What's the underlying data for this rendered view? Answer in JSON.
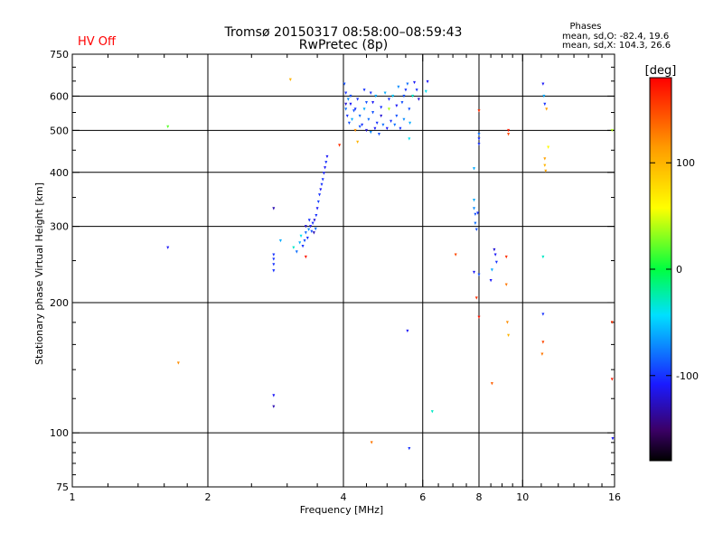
{
  "title_line1": "Tromsø 20150317 08:58:00–08:59:43",
  "title_line2": "RwPretec (8p)",
  "status": "HV Off",
  "status_color": "#ff0000",
  "phases": {
    "heading": "Phases",
    "line_o": "mean, sd,O: -82.4, 19.6",
    "line_x": "mean, sd,X: 104.3, 26.6"
  },
  "colorbar": {
    "label": "[deg]",
    "ticks": [
      "100",
      "0",
      "-100"
    ],
    "tick_values": [
      100,
      0,
      -100
    ],
    "range": [
      -180,
      180
    ]
  },
  "chart_data": {
    "type": "scatter",
    "xlabel": "Frequency [MHz]",
    "ylabel": "Stationary phase Virtual Height [km]",
    "x_scale": "log",
    "y_scale": "log",
    "xlim": [
      1,
      16
    ],
    "ylim": [
      75,
      750
    ],
    "xticks": [
      1,
      2,
      4,
      6,
      8,
      10,
      16
    ],
    "xtick_labels": [
      "1",
      "2",
      "4",
      "6",
      "8",
      "10",
      "16"
    ],
    "yticks": [
      75,
      100,
      200,
      300,
      400,
      500,
      600,
      750
    ],
    "ytick_labels": [
      "75",
      "100",
      "200",
      "300",
      "400",
      "500",
      "600",
      "750"
    ],
    "grid_x": [
      2,
      4,
      6,
      8,
      10
    ],
    "grid_y": [
      100,
      200,
      300,
      400,
      500,
      600
    ],
    "points": [
      [
        1.63,
        510,
        20
      ],
      [
        1.72,
        145,
        120
      ],
      [
        1.63,
        268,
        -110
      ],
      [
        2.8,
        330,
        -130
      ],
      [
        2.8,
        258,
        -100
      ],
      [
        2.8,
        252,
        -100
      ],
      [
        2.8,
        245,
        -100
      ],
      [
        2.8,
        237,
        -100
      ],
      [
        2.8,
        122,
        -110
      ],
      [
        2.8,
        115,
        -130
      ],
      [
        2.9,
        278,
        -60
      ],
      [
        3.05,
        655,
        100
      ],
      [
        3.3,
        255,
        170
      ],
      [
        3.1,
        268,
        -30
      ],
      [
        3.15,
        262,
        -80
      ],
      [
        3.2,
        275,
        -60
      ],
      [
        3.22,
        285,
        -40
      ],
      [
        3.25,
        270,
        -100
      ],
      [
        3.28,
        278,
        -90
      ],
      [
        3.3,
        290,
        -80
      ],
      [
        3.33,
        282,
        -100
      ],
      [
        3.35,
        295,
        -70
      ],
      [
        3.38,
        300,
        -110
      ],
      [
        3.4,
        292,
        -90
      ],
      [
        3.42,
        305,
        -100
      ],
      [
        3.45,
        310,
        -120
      ],
      [
        3.47,
        296,
        -80
      ],
      [
        3.48,
        318,
        -100
      ],
      [
        3.5,
        330,
        -110
      ],
      [
        3.52,
        342,
        -95
      ],
      [
        3.54,
        355,
        -100
      ],
      [
        3.56,
        365,
        -110
      ],
      [
        3.58,
        375,
        -100
      ],
      [
        3.6,
        385,
        -100
      ],
      [
        3.62,
        398,
        -105
      ],
      [
        3.64,
        410,
        -110
      ],
      [
        3.66,
        422,
        -100
      ],
      [
        3.68,
        435,
        -110
      ],
      [
        3.3,
        300,
        -120
      ],
      [
        3.36,
        310,
        -100
      ],
      [
        3.44,
        290,
        -130
      ],
      [
        3.92,
        462,
        160
      ],
      [
        4.02,
        640,
        -90
      ],
      [
        4.05,
        610,
        -100
      ],
      [
        4.05,
        560,
        -80
      ],
      [
        4.08,
        540,
        -100
      ],
      [
        4.1,
        590,
        -70
      ],
      [
        4.12,
        520,
        -90
      ],
      [
        4.15,
        575,
        -110
      ],
      [
        4.18,
        530,
        -60
      ],
      [
        4.22,
        555,
        -90
      ],
      [
        4.25,
        500,
        120
      ],
      [
        4.3,
        590,
        -100
      ],
      [
        4.3,
        470,
        100
      ],
      [
        4.35,
        540,
        -80
      ],
      [
        4.4,
        515,
        -100
      ],
      [
        4.45,
        560,
        -60
      ],
      [
        4.5,
        500,
        -120
      ],
      [
        4.5,
        580,
        -90
      ],
      [
        4.55,
        530,
        -80
      ],
      [
        4.6,
        610,
        -100
      ],
      [
        4.6,
        495,
        -70
      ],
      [
        4.65,
        550,
        -90
      ],
      [
        4.7,
        505,
        -110
      ],
      [
        4.72,
        600,
        -60
      ],
      [
        4.75,
        520,
        -100
      ],
      [
        4.8,
        490,
        -90
      ],
      [
        4.85,
        565,
        -100
      ],
      [
        4.9,
        515,
        -80
      ],
      [
        4.95,
        610,
        -60
      ],
      [
        5.0,
        505,
        -110
      ],
      [
        5.05,
        560,
        40
      ],
      [
        5.1,
        525,
        -100
      ],
      [
        5.15,
        600,
        -50
      ],
      [
        5.2,
        515,
        -80
      ],
      [
        5.25,
        540,
        -90
      ],
      [
        5.3,
        630,
        -70
      ],
      [
        5.35,
        505,
        -100
      ],
      [
        5.4,
        580,
        -90
      ],
      [
        5.45,
        530,
        -70
      ],
      [
        5.5,
        620,
        -100
      ],
      [
        5.55,
        640,
        -80
      ],
      [
        5.6,
        560,
        -90
      ],
      [
        5.62,
        520,
        -60
      ],
      [
        5.7,
        600,
        -30
      ],
      [
        5.75,
        645,
        -110
      ],
      [
        5.82,
        620,
        -100
      ],
      [
        5.88,
        590,
        -120
      ],
      [
        5.6,
        478,
        -40
      ],
      [
        6.15,
        648,
        -110
      ],
      [
        6.1,
        615,
        -40
      ],
      [
        4.05,
        575,
        -120
      ],
      [
        4.15,
        600,
        -90
      ],
      [
        4.25,
        560,
        -100
      ],
      [
        4.35,
        510,
        -90
      ],
      [
        4.45,
        620,
        -100
      ],
      [
        4.65,
        580,
        -110
      ],
      [
        4.85,
        540,
        -120
      ],
      [
        5.05,
        590,
        -100
      ],
      [
        5.25,
        570,
        -110
      ],
      [
        5.45,
        600,
        -90
      ],
      [
        4.62,
        95,
        130
      ],
      [
        5.55,
        172,
        -110
      ],
      [
        5.6,
        92,
        -100
      ],
      [
        6.3,
        112,
        -30
      ],
      [
        7.1,
        258,
        150
      ],
      [
        7.8,
        408,
        -60
      ],
      [
        7.8,
        345,
        -60
      ],
      [
        7.8,
        330,
        -70
      ],
      [
        7.85,
        320,
        -90
      ],
      [
        7.85,
        305,
        -80
      ],
      [
        7.9,
        295,
        -90
      ],
      [
        7.8,
        235,
        -110
      ],
      [
        7.9,
        205,
        160
      ],
      [
        8.0,
        555,
        160
      ],
      [
        8.0,
        490,
        -80
      ],
      [
        8.0,
        478,
        -100
      ],
      [
        8.0,
        465,
        -100
      ],
      [
        7.95,
        322,
        -100
      ],
      [
        8.0,
        232,
        -90
      ],
      [
        8.0,
        185,
        170
      ],
      [
        8.55,
        130,
        140
      ],
      [
        8.65,
        265,
        -120
      ],
      [
        8.7,
        258,
        -110
      ],
      [
        8.75,
        248,
        -100
      ],
      [
        8.5,
        225,
        -110
      ],
      [
        8.55,
        238,
        -60
      ],
      [
        9.2,
        255,
        160
      ],
      [
        9.2,
        220,
        130
      ],
      [
        9.25,
        180,
        120
      ],
      [
        9.3,
        168,
        100
      ],
      [
        9.3,
        500,
        170
      ],
      [
        9.3,
        490,
        150
      ],
      [
        11.1,
        640,
        -110
      ],
      [
        11.15,
        600,
        -60
      ],
      [
        11.2,
        575,
        -100
      ],
      [
        11.3,
        560,
        110
      ],
      [
        11.4,
        457,
        60
      ],
      [
        11.2,
        430,
        110
      ],
      [
        11.2,
        415,
        100
      ],
      [
        11.25,
        403,
        110
      ],
      [
        11.1,
        255,
        -30
      ],
      [
        11.1,
        188,
        -100
      ],
      [
        11.1,
        162,
        150
      ],
      [
        11.05,
        152,
        130
      ],
      [
        15.8,
        500,
        40
      ],
      [
        15.8,
        180,
        160
      ],
      [
        15.8,
        133,
        170
      ],
      [
        15.85,
        97,
        -110
      ]
    ]
  }
}
